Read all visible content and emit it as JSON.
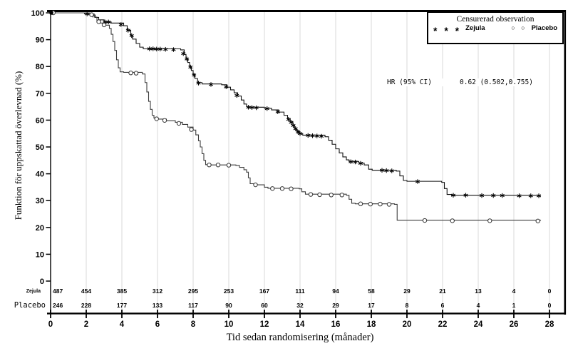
{
  "figure": {
    "y_axis_title": "Funktion för uppskattad överlevnad (%)",
    "x_axis_title": "Tid sedan randomisering (månader)",
    "hr_label": "HR (95% CI)",
    "hr_value": "0.62 (0.502,0.755)",
    "legend": {
      "title": "Censurerad observation",
      "zejula_symbols": "* * *",
      "placebo_symbols": "○ ○",
      "series": [
        {
          "label": "Zejula",
          "marker": "asterisk"
        },
        {
          "label": "Placebo",
          "marker": "circle"
        }
      ]
    },
    "risk_table": {
      "rows": [
        {
          "label": "Zejula",
          "values": [
            487,
            454,
            385,
            312,
            295,
            253,
            167,
            111,
            94,
            58,
            29,
            21,
            13,
            4,
            0
          ]
        },
        {
          "label": "Placebo",
          "values": [
            246,
            228,
            177,
            133,
            117,
            90,
            60,
            32,
            29,
            17,
            8,
            6,
            4,
            1,
            0
          ]
        }
      ]
    }
  },
  "chart_data": {
    "type": "line",
    "subtype": "kaplan-meier-step",
    "title": "",
    "xlabel": "Tid sedan randomisering (månader)",
    "ylabel": "Funktion för uppskattad överlevnad (%)",
    "xlim": [
      0,
      28
    ],
    "ylim": [
      0,
      100
    ],
    "x_ticks": [
      0,
      2,
      4,
      6,
      8,
      10,
      12,
      14,
      16,
      18,
      20,
      22,
      24,
      26,
      28
    ],
    "y_ticks": [
      0,
      10,
      20,
      30,
      40,
      50,
      60,
      70,
      80,
      90,
      100
    ],
    "grid": "vertical-light",
    "legend_position": "top-right",
    "annotations": [
      {
        "text": "HR (95% CI)  0.62 (0.502,0.755)",
        "x": 13.5,
        "y": 75
      }
    ],
    "series": [
      {
        "name": "Zejula",
        "marker": "asterisk",
        "color": "#111111",
        "points": [
          [
            0,
            100
          ],
          [
            1.9,
            99.6
          ],
          [
            2.2,
            99.2
          ],
          [
            2.5,
            98.3
          ],
          [
            2.7,
            97.4
          ],
          [
            3.0,
            96.6
          ],
          [
            3.4,
            96.2
          ],
          [
            4.1,
            95.2
          ],
          [
            4.3,
            93.5
          ],
          [
            4.5,
            91.5
          ],
          [
            4.6,
            90.2
          ],
          [
            4.8,
            88.6
          ],
          [
            5.0,
            87.2
          ],
          [
            5.2,
            86.6
          ],
          [
            7.3,
            86.2
          ],
          [
            7.5,
            84.5
          ],
          [
            7.6,
            83
          ],
          [
            7.7,
            81.5
          ],
          [
            7.8,
            80
          ],
          [
            7.9,
            78.5
          ],
          [
            8.0,
            77
          ],
          [
            8.1,
            75.5
          ],
          [
            8.25,
            74
          ],
          [
            8.5,
            73.5
          ],
          [
            9.6,
            73.2
          ],
          [
            9.9,
            72.3
          ],
          [
            10.1,
            71.3
          ],
          [
            10.3,
            70.2
          ],
          [
            10.5,
            69
          ],
          [
            10.7,
            67.5
          ],
          [
            10.85,
            66
          ],
          [
            11.0,
            65
          ],
          [
            11.05,
            64.8
          ],
          [
            12.0,
            64.4
          ],
          [
            12.4,
            63.8
          ],
          [
            12.8,
            63
          ],
          [
            13.1,
            61.8
          ],
          [
            13.3,
            60.5
          ],
          [
            13.45,
            59.3
          ],
          [
            13.6,
            58
          ],
          [
            13.7,
            57
          ],
          [
            13.8,
            56
          ],
          [
            13.95,
            55
          ],
          [
            14.15,
            54.4
          ],
          [
            15.4,
            53.8
          ],
          [
            15.6,
            52.5
          ],
          [
            15.8,
            51
          ],
          [
            16.0,
            49.3
          ],
          [
            16.2,
            47.8
          ],
          [
            16.4,
            46.3
          ],
          [
            16.6,
            45.2
          ],
          [
            16.75,
            44.6
          ],
          [
            17.3,
            44
          ],
          [
            17.6,
            43.3
          ],
          [
            17.85,
            41.7
          ],
          [
            18.05,
            41.3
          ],
          [
            19.4,
            41
          ],
          [
            19.6,
            39.2
          ],
          [
            19.8,
            37.5
          ],
          [
            20.0,
            37.2
          ],
          [
            21.95,
            36.8
          ],
          [
            22.1,
            34.5
          ],
          [
            22.25,
            32.3
          ],
          [
            22.5,
            32
          ],
          [
            27.5,
            31.8
          ]
        ],
        "censored": [
          [
            2.05,
            99.6
          ],
          [
            2.35,
            99.2
          ],
          [
            3.05,
            96.6
          ],
          [
            3.25,
            96.6
          ],
          [
            3.95,
            95.6
          ],
          [
            4.35,
            93.5
          ],
          [
            4.55,
            91.5
          ],
          [
            5.55,
            86.6
          ],
          [
            5.75,
            86.6
          ],
          [
            5.95,
            86.5
          ],
          [
            6.15,
            86.5
          ],
          [
            6.45,
            86.4
          ],
          [
            6.9,
            86.3
          ],
          [
            7.45,
            84.8
          ],
          [
            7.65,
            82.8
          ],
          [
            7.85,
            79.8
          ],
          [
            8.05,
            76.8
          ],
          [
            8.3,
            73.8
          ],
          [
            9.0,
            73.3
          ],
          [
            9.85,
            72.4
          ],
          [
            10.45,
            69.2
          ],
          [
            11.1,
            64.8
          ],
          [
            11.3,
            64.7
          ],
          [
            11.55,
            64.6
          ],
          [
            12.15,
            64.3
          ],
          [
            12.75,
            63.1
          ],
          [
            13.35,
            60.3
          ],
          [
            13.5,
            59.2
          ],
          [
            13.62,
            58
          ],
          [
            13.75,
            56.8
          ],
          [
            13.88,
            55.6
          ],
          [
            14.0,
            55
          ],
          [
            14.45,
            54.3
          ],
          [
            14.7,
            54.2
          ],
          [
            14.95,
            54.1
          ],
          [
            15.2,
            54.0
          ],
          [
            16.85,
            44.5
          ],
          [
            17.1,
            44.4
          ],
          [
            17.4,
            43.9
          ],
          [
            18.6,
            41.3
          ],
          [
            18.85,
            41.2
          ],
          [
            19.15,
            41.1
          ],
          [
            20.6,
            37.1
          ],
          [
            22.6,
            32
          ],
          [
            23.3,
            32
          ],
          [
            24.2,
            31.9
          ],
          [
            24.85,
            31.9
          ],
          [
            25.35,
            31.9
          ],
          [
            26.3,
            31.8
          ],
          [
            26.95,
            31.8
          ],
          [
            27.4,
            31.8
          ]
        ]
      },
      {
        "name": "Placebo",
        "marker": "circle",
        "color": "#3c3c3c",
        "points": [
          [
            0,
            100
          ],
          [
            2.2,
            99.3
          ],
          [
            2.45,
            98.4
          ],
          [
            2.6,
            97.2
          ],
          [
            2.8,
            96.2
          ],
          [
            3.1,
            95.4
          ],
          [
            3.3,
            94.2
          ],
          [
            3.4,
            92
          ],
          [
            3.5,
            89.3
          ],
          [
            3.6,
            86
          ],
          [
            3.7,
            82.5
          ],
          [
            3.8,
            79.5
          ],
          [
            3.9,
            78
          ],
          [
            4.1,
            77.8
          ],
          [
            5.15,
            77.2
          ],
          [
            5.3,
            74
          ],
          [
            5.4,
            70.5
          ],
          [
            5.5,
            67
          ],
          [
            5.6,
            64
          ],
          [
            5.7,
            61.8
          ],
          [
            5.8,
            60.8
          ],
          [
            6.0,
            60.4
          ],
          [
            6.5,
            59.8
          ],
          [
            7.0,
            59.2
          ],
          [
            7.4,
            58.4
          ],
          [
            7.7,
            57.4
          ],
          [
            8.0,
            56.3
          ],
          [
            8.15,
            54.5
          ],
          [
            8.3,
            52.3
          ],
          [
            8.4,
            50
          ],
          [
            8.5,
            47.5
          ],
          [
            8.6,
            45
          ],
          [
            8.7,
            43.4
          ],
          [
            9.0,
            43.3
          ],
          [
            10.4,
            43.1
          ],
          [
            10.6,
            42.4
          ],
          [
            10.85,
            41.5
          ],
          [
            11.0,
            40.6
          ],
          [
            11.1,
            38.5
          ],
          [
            11.2,
            36.3
          ],
          [
            11.45,
            35.9
          ],
          [
            12.0,
            35
          ],
          [
            12.2,
            34.6
          ],
          [
            13.95,
            34.4
          ],
          [
            14.1,
            33.3
          ],
          [
            14.3,
            32.4
          ],
          [
            16.6,
            32
          ],
          [
            16.75,
            30.5
          ],
          [
            16.9,
            29
          ],
          [
            17.1,
            28.8
          ],
          [
            19.3,
            28.6
          ],
          [
            19.45,
            22.7
          ],
          [
            27.5,
            22.5
          ]
        ],
        "censored": [
          [
            0.15,
            100
          ],
          [
            2.3,
            99.3
          ],
          [
            2.7,
            96.7
          ],
          [
            3.0,
            95.5
          ],
          [
            4.5,
            77.6
          ],
          [
            4.8,
            77.5
          ],
          [
            5.95,
            60.5
          ],
          [
            6.4,
            59.9
          ],
          [
            7.2,
            58.8
          ],
          [
            7.9,
            56.5
          ],
          [
            8.9,
            43.3
          ],
          [
            9.4,
            43.3
          ],
          [
            10.0,
            43.2
          ],
          [
            11.5,
            35.9
          ],
          [
            12.45,
            34.5
          ],
          [
            13.0,
            34.5
          ],
          [
            13.5,
            34.4
          ],
          [
            14.6,
            32.3
          ],
          [
            15.1,
            32.2
          ],
          [
            15.75,
            32.1
          ],
          [
            16.35,
            32.1
          ],
          [
            17.4,
            28.8
          ],
          [
            17.95,
            28.7
          ],
          [
            18.5,
            28.7
          ],
          [
            19.0,
            28.6
          ],
          [
            21.0,
            22.6
          ],
          [
            22.55,
            22.5
          ],
          [
            24.65,
            22.5
          ],
          [
            27.35,
            22.4
          ]
        ]
      }
    ],
    "risk_table": {
      "x": [
        0,
        2,
        4,
        6,
        8,
        10,
        12,
        14,
        16,
        18,
        20,
        22,
        24,
        26,
        28
      ],
      "Zejula": [
        487,
        454,
        385,
        312,
        295,
        253,
        167,
        111,
        94,
        58,
        29,
        21,
        13,
        4,
        0
      ],
      "Placebo": [
        246,
        228,
        177,
        133,
        117,
        90,
        60,
        32,
        29,
        17,
        8,
        6,
        4,
        1,
        0
      ]
    }
  }
}
